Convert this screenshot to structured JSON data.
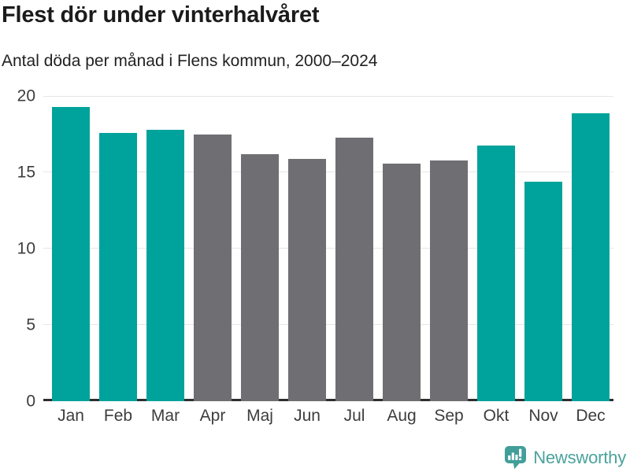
{
  "chart_data": {
    "type": "bar",
    "title": "Flest dör under vinterhalvåret",
    "subtitle": "Antal döda per månad i Flens kommun, 2000–2024",
    "categories": [
      "Jan",
      "Feb",
      "Mar",
      "Apr",
      "Maj",
      "Jun",
      "Jul",
      "Aug",
      "Sep",
      "Okt",
      "Nov",
      "Dec"
    ],
    "values": [
      19.3,
      17.6,
      17.8,
      17.5,
      16.2,
      15.9,
      17.3,
      15.6,
      15.8,
      16.8,
      14.4,
      18.9
    ],
    "highlighted_months": [
      "Jan",
      "Feb",
      "Mar",
      "Okt",
      "Nov",
      "Dec"
    ],
    "colors": {
      "highlight": "#00A39B",
      "base": "#6E6E73",
      "gridline": "#E6E6E6",
      "axis_line": "#2E2E2E",
      "axis_text": "#3D3D3D"
    },
    "xlabel": "",
    "ylabel": "",
    "ylim": [
      0,
      20
    ],
    "yticks": [
      0,
      5,
      10,
      15,
      20
    ],
    "grid": true,
    "legend": false
  },
  "footer": {
    "brand": "Newsworthy",
    "brand_color": "#4BA29C",
    "icon": "newsworthy-speech-bubble-chart-icon",
    "icon_color": "#429E98"
  }
}
